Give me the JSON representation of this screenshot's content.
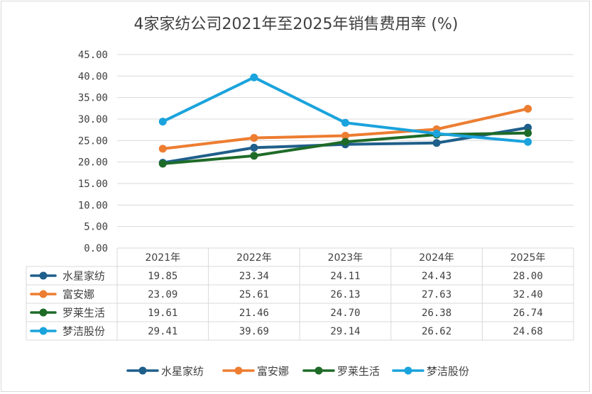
{
  "chart_data": {
    "type": "line",
    "title": "4家家纺公司2021年至2025年销售费用率 (%)",
    "categories": [
      "2021年",
      "2022年",
      "2023年",
      "2024年",
      "2025年"
    ],
    "ylim": [
      0,
      45
    ],
    "yticks": [
      "0.00",
      "5.00",
      "10.00",
      "15.00",
      "20.00",
      "25.00",
      "30.00",
      "35.00",
      "40.00",
      "45.00"
    ],
    "grid": true,
    "legend": "bottom",
    "data_table": true,
    "series": [
      {
        "name": "水星家纺",
        "color": "#1f5f8b",
        "values": [
          19.85,
          23.34,
          24.11,
          24.43,
          28.0
        ],
        "labels": [
          "19.85",
          "23.34",
          "24.11",
          "24.43",
          "28.00"
        ]
      },
      {
        "name": "富安娜",
        "color": "#ed7d31",
        "values": [
          23.09,
          25.61,
          26.13,
          27.63,
          32.4
        ],
        "labels": [
          "23.09",
          "25.61",
          "26.13",
          "27.63",
          "32.40"
        ]
      },
      {
        "name": "罗莱生活",
        "color": "#1e6b28",
        "values": [
          19.61,
          21.46,
          24.7,
          26.38,
          26.74
        ],
        "labels": [
          "19.61",
          "21.46",
          "24.70",
          "26.38",
          "26.74"
        ]
      },
      {
        "name": "梦洁股份",
        "color": "#1aa3dc",
        "values": [
          29.41,
          39.69,
          29.14,
          26.62,
          24.68
        ],
        "labels": [
          "29.41",
          "39.69",
          "29.14",
          "26.62",
          "24.68"
        ]
      }
    ]
  }
}
